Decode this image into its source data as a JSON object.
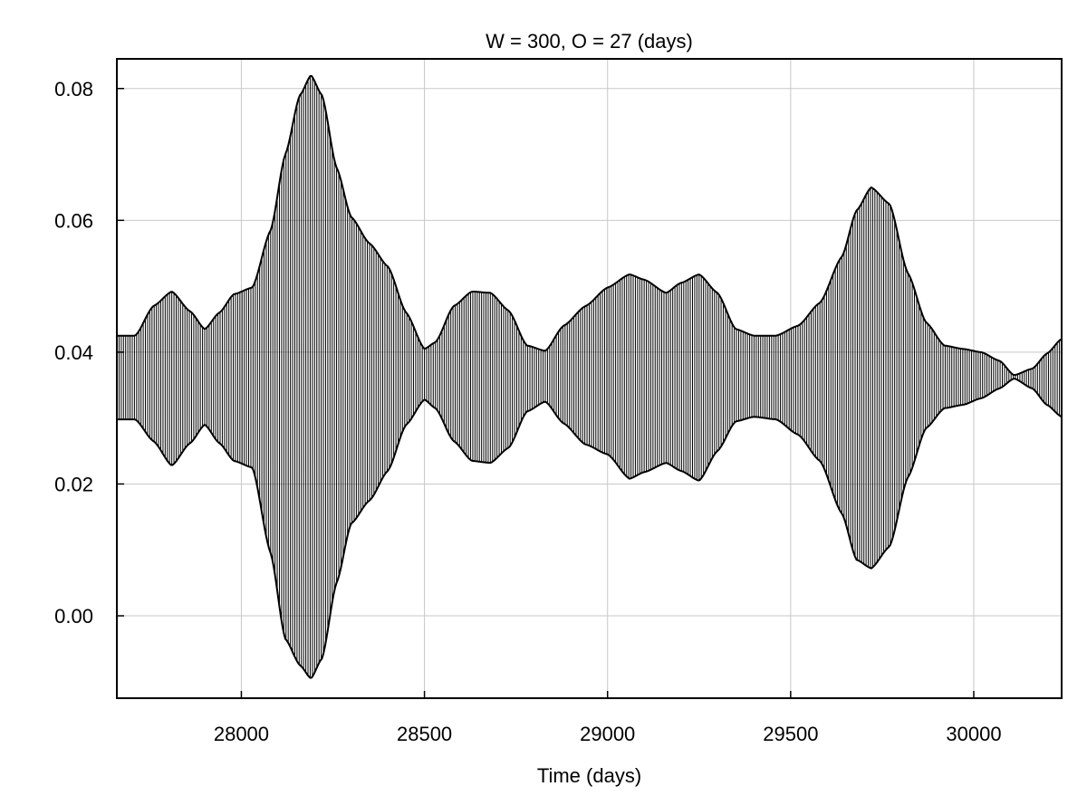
{
  "chart_data": {
    "type": "line",
    "title": "W = 300, O = 27  (days)",
    "xlabel": "Time (days)",
    "ylabel": "",
    "xlim": [
      27660,
      30240
    ],
    "ylim": [
      -0.0125,
      0.0845
    ],
    "grid": true,
    "x_ticks": [
      28000,
      28500,
      29000,
      29500,
      30000
    ],
    "y_ticks": [
      0.0,
      0.02,
      0.04,
      0.06,
      0.08
    ],
    "x_tick_labels": [
      "28000",
      "28500",
      "29000",
      "29500",
      "30000"
    ],
    "y_tick_labels": [
      "0.00",
      "0.02",
      "0.04",
      "0.06",
      "0.08"
    ],
    "oscillation_period_days": 6,
    "series": [
      {
        "role": "upper-envelope",
        "x": [
          27660,
          27710,
          27760,
          27810,
          27860,
          27900,
          27940,
          27980,
          28030,
          28080,
          28120,
          28160,
          28190,
          28220,
          28260,
          28300,
          28350,
          28400,
          28450,
          28500,
          28530,
          28580,
          28630,
          28680,
          28730,
          28780,
          28830,
          28880,
          28940,
          29000,
          29060,
          29100,
          29160,
          29200,
          29250,
          29300,
          29350,
          29400,
          29460,
          29520,
          29580,
          29640,
          29680,
          29720,
          29770,
          29820,
          29870,
          29920,
          29970,
          30020,
          30070,
          30110,
          30160,
          30200,
          30240
        ],
        "y": [
          0.0425,
          0.0425,
          0.047,
          0.0492,
          0.0462,
          0.0435,
          0.046,
          0.0488,
          0.0498,
          0.0585,
          0.07,
          0.079,
          0.082,
          0.079,
          0.068,
          0.0605,
          0.0565,
          0.053,
          0.046,
          0.0405,
          0.0415,
          0.047,
          0.0492,
          0.049,
          0.0463,
          0.041,
          0.0402,
          0.044,
          0.047,
          0.0498,
          0.0518,
          0.051,
          0.049,
          0.0505,
          0.0518,
          0.049,
          0.0435,
          0.0425,
          0.0425,
          0.044,
          0.0475,
          0.0545,
          0.0615,
          0.065,
          0.0625,
          0.052,
          0.0445,
          0.041,
          0.0405,
          0.04,
          0.0387,
          0.0365,
          0.0375,
          0.0398,
          0.042
        ]
      },
      {
        "role": "lower-envelope",
        "x": [
          27660,
          27710,
          27760,
          27810,
          27860,
          27900,
          27940,
          27980,
          28030,
          28080,
          28120,
          28160,
          28190,
          28220,
          28260,
          28300,
          28350,
          28400,
          28450,
          28500,
          28530,
          28580,
          28630,
          28680,
          28730,
          28780,
          28830,
          28880,
          28940,
          29000,
          29060,
          29100,
          29160,
          29200,
          29250,
          29300,
          29350,
          29400,
          29460,
          29520,
          29580,
          29640,
          29680,
          29720,
          29770,
          29820,
          29870,
          29920,
          29970,
          30020,
          30070,
          30110,
          30160,
          30200,
          30240
        ],
        "y": [
          0.0298,
          0.0298,
          0.0265,
          0.0228,
          0.0262,
          0.029,
          0.0262,
          0.0235,
          0.0225,
          0.0095,
          -0.0035,
          -0.0075,
          -0.0095,
          -0.0065,
          0.005,
          0.014,
          0.0175,
          0.022,
          0.029,
          0.0328,
          0.0315,
          0.0265,
          0.0235,
          0.0232,
          0.0255,
          0.031,
          0.0325,
          0.0292,
          0.026,
          0.0245,
          0.0208,
          0.0218,
          0.0232,
          0.022,
          0.0205,
          0.025,
          0.0295,
          0.0302,
          0.0298,
          0.0275,
          0.0235,
          0.0155,
          0.0085,
          0.0072,
          0.0105,
          0.021,
          0.0285,
          0.0315,
          0.032,
          0.033,
          0.0345,
          0.036,
          0.0345,
          0.032,
          0.0302
        ]
      }
    ]
  }
}
